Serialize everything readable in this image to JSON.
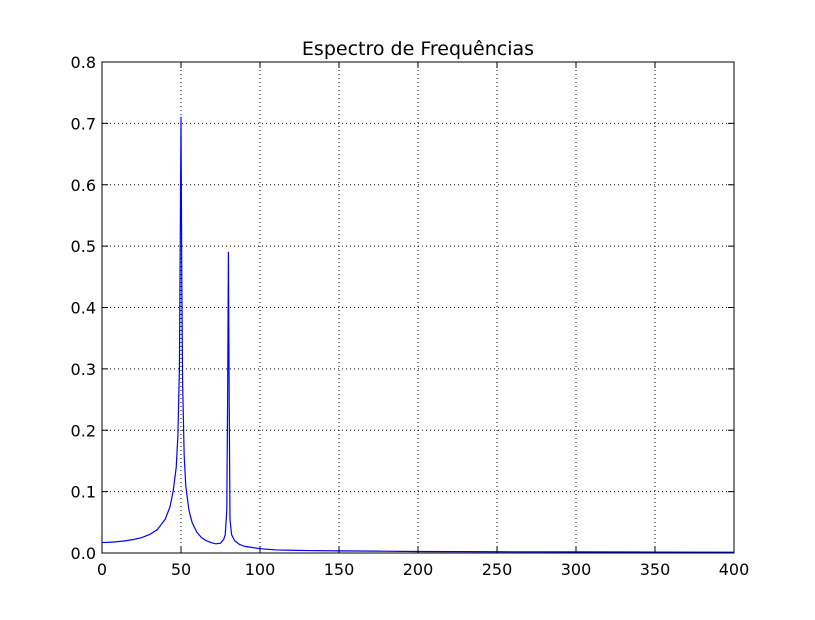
{
  "chart_data": {
    "type": "line",
    "title": "Espectro de Frequências",
    "xlabel": "",
    "ylabel": "",
    "xlim": [
      0,
      400
    ],
    "ylim": [
      0,
      0.8
    ],
    "xticks": [
      0,
      50,
      100,
      150,
      200,
      250,
      300,
      350,
      400
    ],
    "yticks": [
      0.0,
      0.1,
      0.2,
      0.3,
      0.4,
      0.5,
      0.6,
      0.7,
      0.8
    ],
    "xtick_labels": [
      "0",
      "50",
      "100",
      "150",
      "200",
      "250",
      "300",
      "350",
      "400"
    ],
    "ytick_labels": [
      "0.0",
      "0.1",
      "0.2",
      "0.3",
      "0.4",
      "0.5",
      "0.6",
      "0.7",
      "0.8"
    ],
    "grid": true,
    "legend": "none",
    "line_color": "#0000ff",
    "series": [
      {
        "x": [
          0,
          5,
          10,
          15,
          20,
          25,
          30,
          35,
          40,
          43,
          45,
          47,
          48,
          49,
          49.5,
          50,
          50.5,
          51,
          52,
          53,
          55,
          57,
          60,
          63,
          66,
          69,
          72,
          75,
          77,
          78,
          79,
          79.5,
          80,
          80.5,
          81,
          82,
          84,
          87,
          90,
          95,
          100,
          110,
          120,
          130,
          150,
          175,
          200,
          250,
          300,
          350,
          400
        ],
        "y": [
          0.017,
          0.0175,
          0.0185,
          0.02,
          0.022,
          0.025,
          0.03,
          0.038,
          0.055,
          0.075,
          0.1,
          0.14,
          0.19,
          0.3,
          0.5,
          0.71,
          0.45,
          0.28,
          0.16,
          0.11,
          0.07,
          0.05,
          0.034,
          0.025,
          0.02,
          0.017,
          0.015,
          0.016,
          0.022,
          0.03,
          0.07,
          0.25,
          0.49,
          0.25,
          0.055,
          0.03,
          0.02,
          0.014,
          0.011,
          0.009,
          0.007,
          0.005,
          0.0045,
          0.004,
          0.0035,
          0.003,
          0.0025,
          0.002,
          0.0018,
          0.0015,
          0.0012
        ]
      }
    ]
  }
}
